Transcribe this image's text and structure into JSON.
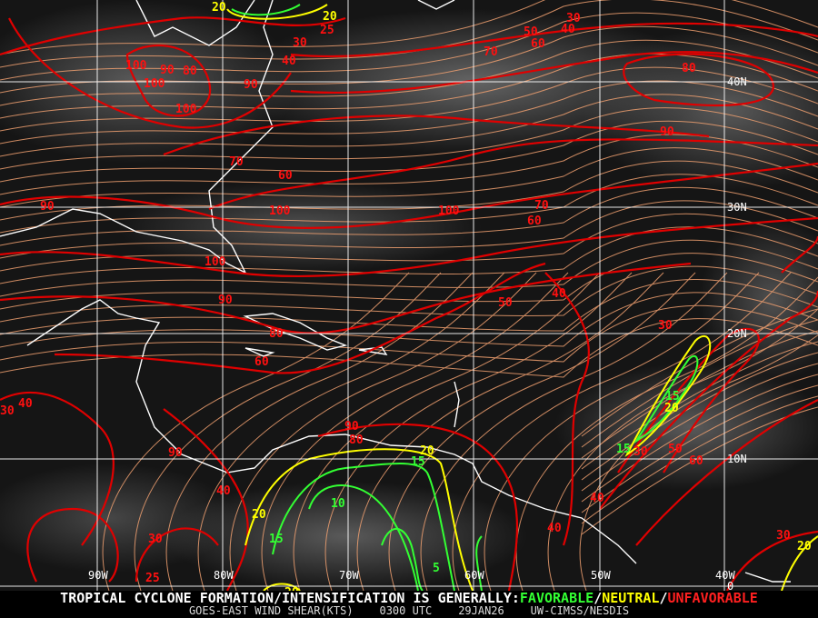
{
  "product": {
    "headline": "TROPICAL CYCLONE FORMATION/INTENSIFICATION IS GENERALLY:",
    "favorable": "FAVORABLE",
    "neutral": "NEUTRAL",
    "unfavorable": "UNFAVORABLE",
    "separator": "/",
    "source": "GOES-EAST WIND SHEAR(KTS)",
    "time": "0300 UTC",
    "date": "29JAN26",
    "credit": "UW-CIMSS/NESDIS"
  },
  "colors": {
    "favorable": "#33ff33",
    "neutral": "#ffff00",
    "unfavorable": "#ff2020",
    "streamlines": "#f0a070",
    "coastline": "#ffffff",
    "grid": "#ffffff"
  },
  "grid": {
    "longitudes": [
      "90W",
      "80W",
      "70W",
      "60W",
      "50W",
      "40W"
    ],
    "latitudes": [
      "40N",
      "30N",
      "20N",
      "10N",
      "0"
    ]
  },
  "contour_labels": {
    "red": [
      "30",
      "25",
      "40",
      "100",
      "90",
      "80",
      "100",
      "100",
      "90",
      "50",
      "60",
      "70",
      "80",
      "40",
      "30",
      "90",
      "70",
      "60",
      "100",
      "100",
      "70",
      "60",
      "100",
      "90",
      "80",
      "60",
      "50",
      "40",
      "30",
      "90",
      "40",
      "30",
      "90",
      "40",
      "30",
      "25",
      "90",
      "80",
      "40",
      "40",
      "50",
      "60",
      "30",
      "30"
    ],
    "yellow": [
      "20",
      "20",
      "20",
      "20",
      "20",
      "20",
      "20"
    ],
    "green": [
      "15",
      "15",
      "10",
      "15",
      "5",
      "15"
    ]
  }
}
